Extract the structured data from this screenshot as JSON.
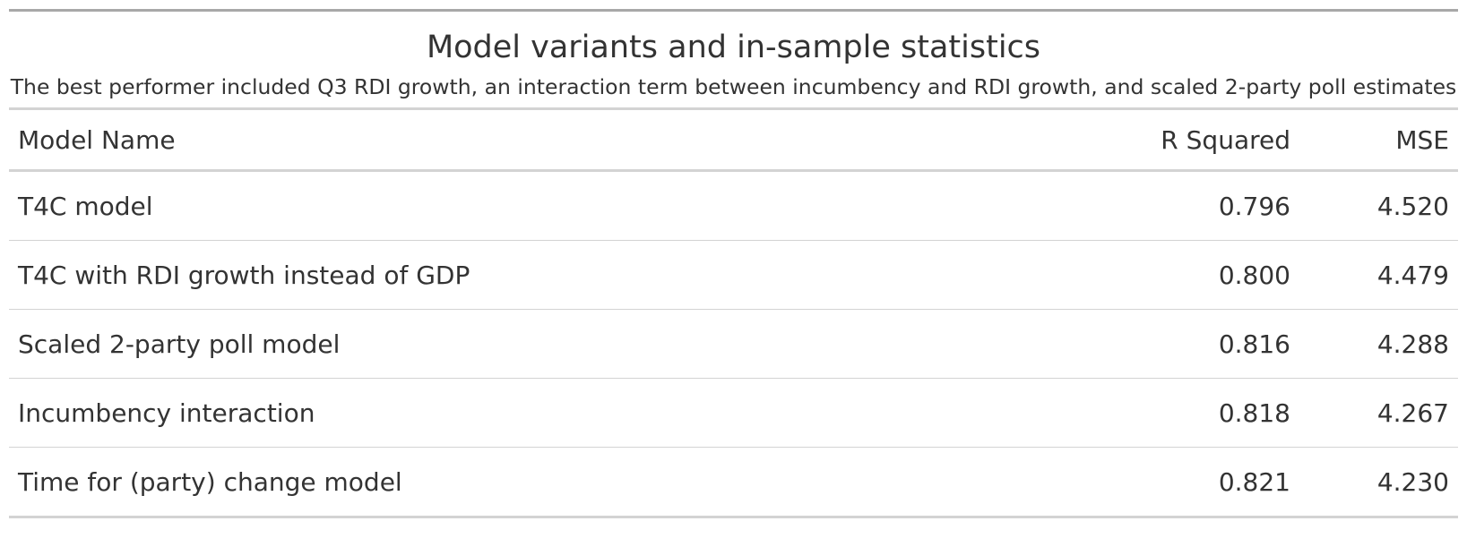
{
  "table": {
    "title": "Model variants and in-sample statistics",
    "subtitle": "The best performer included Q3 RDI growth, an interaction term between incumbency and RDI growth, and scaled 2-party poll estimates",
    "columns": {
      "model_name": "Model Name",
      "r_squared": "R Squared",
      "mse": "MSE"
    },
    "rows": [
      {
        "model_name": "T4C model",
        "r_squared": "0.796",
        "mse": "4.520"
      },
      {
        "model_name": "T4C with RDI growth instead of GDP",
        "r_squared": "0.800",
        "mse": "4.479"
      },
      {
        "model_name": "Scaled 2-party poll model",
        "r_squared": "0.816",
        "mse": "4.288"
      },
      {
        "model_name": "Incumbency interaction",
        "r_squared": "0.818",
        "mse": "4.267"
      },
      {
        "model_name": "Time for (party) change model",
        "r_squared": "0.821",
        "mse": "4.230"
      }
    ]
  }
}
